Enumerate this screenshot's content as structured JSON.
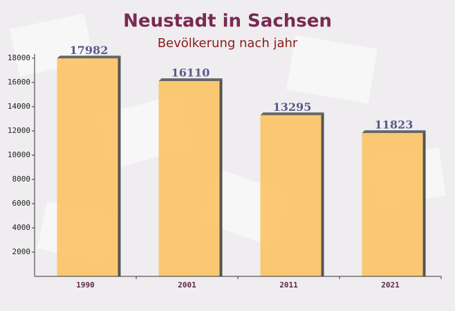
{
  "chart_data": {
    "type": "bar",
    "title": "Neustadt in Sachsen",
    "subtitle": "Bevölkerung nach jahr",
    "categories": [
      "1990",
      "2001",
      "2011",
      "2021"
    ],
    "values": [
      17982,
      16110,
      13295,
      11823
    ],
    "color": "#fbbf5c",
    "ylim": [
      0,
      18000
    ],
    "yticks": [
      2000,
      4000,
      6000,
      8000,
      10000,
      12000,
      14000,
      16000,
      18000
    ]
  }
}
